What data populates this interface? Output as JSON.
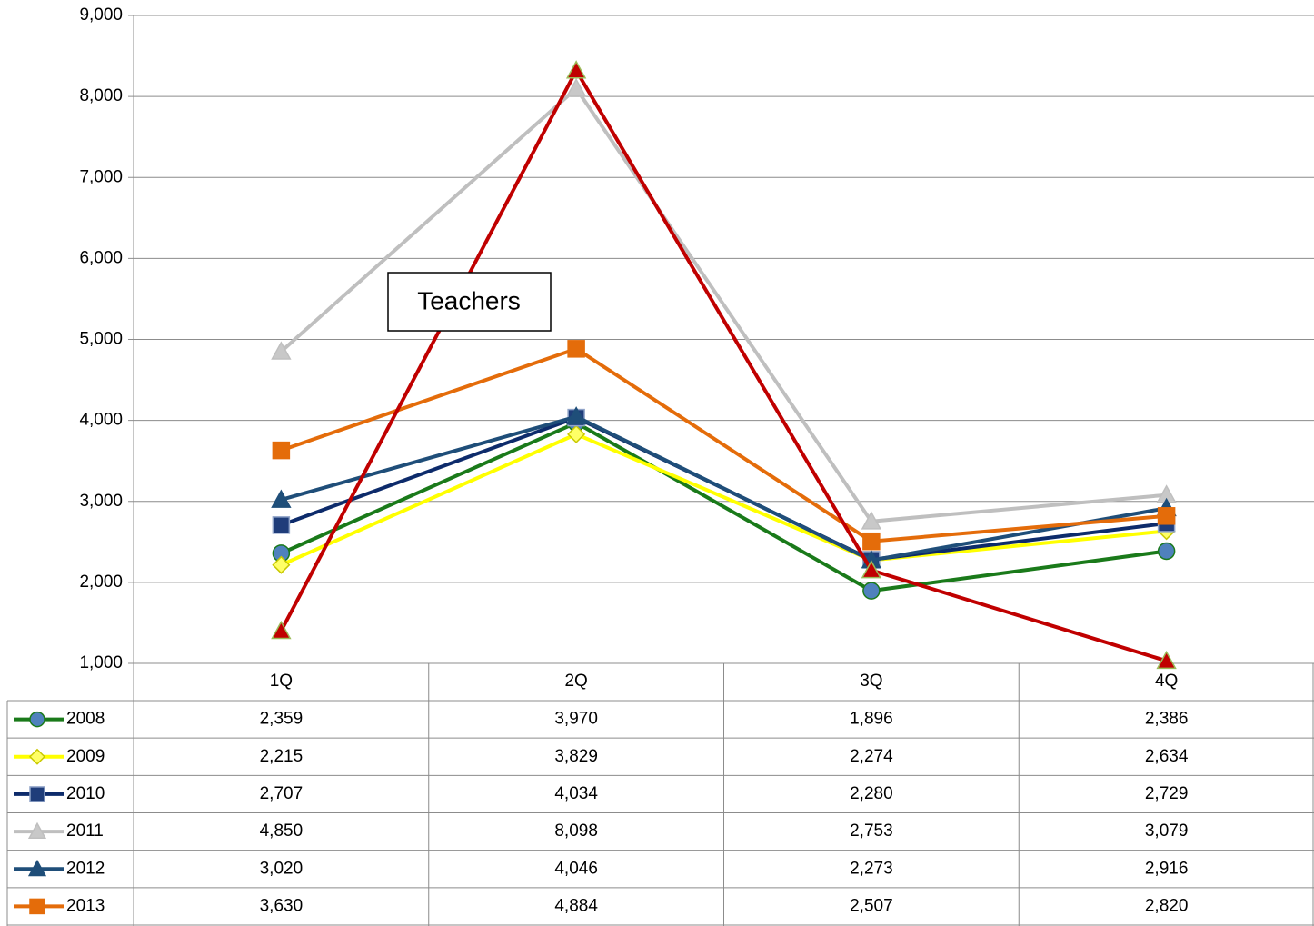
{
  "chart_data": {
    "type": "line",
    "categories": [
      "1Q",
      "2Q",
      "3Q",
      "4Q"
    ],
    "annotation": "Teachers",
    "ylim": [
      1000,
      9000
    ],
    "yticks": [
      {
        "value": 1000,
        "label": "1,000"
      },
      {
        "value": 2000,
        "label": "2,000"
      },
      {
        "value": 3000,
        "label": "3,000"
      },
      {
        "value": 4000,
        "label": "4,000"
      },
      {
        "value": 5000,
        "label": "5,000"
      },
      {
        "value": 6000,
        "label": "6,000"
      },
      {
        "value": 7000,
        "label": "7,000"
      },
      {
        "value": 8000,
        "label": "8,000"
      },
      {
        "value": 9000,
        "label": "9,000"
      }
    ],
    "grid": true,
    "series": [
      {
        "name": "2008",
        "color": "#1a7a1a",
        "marker": "circle",
        "marker_fill": "#4f81bd",
        "marker_edge": "#1a7a1a",
        "values": [
          2359,
          3970,
          1896,
          2386
        ],
        "value_labels": [
          "2,359",
          "3,970",
          "1,896",
          "2,386"
        ]
      },
      {
        "name": "2009",
        "color": "#ffff00",
        "marker": "diamond",
        "marker_fill": "#ffff66",
        "marker_edge": "#c8c800",
        "values": [
          2215,
          3829,
          2274,
          2634
        ],
        "value_labels": [
          "2,215",
          "3,829",
          "2,274",
          "2,634"
        ]
      },
      {
        "name": "2010",
        "color": "#0d2b6b",
        "marker": "square",
        "marker_fill": "#1f3d7a",
        "marker_edge": "#8fa3c8",
        "values": [
          2707,
          4034,
          2280,
          2729
        ],
        "value_labels": [
          "2,707",
          "4,034",
          "2,280",
          "2,729"
        ]
      },
      {
        "name": "2011",
        "color": "#bfbfbf",
        "marker": "triangle",
        "marker_fill": "#c8c8c8",
        "marker_edge": "#bfbfbf",
        "values": [
          4850,
          8098,
          2753,
          3079
        ],
        "value_labels": [
          "4,850",
          "8,098",
          "2,753",
          "3,079"
        ]
      },
      {
        "name": "2012",
        "color": "#1f4e79",
        "marker": "triangle",
        "marker_fill": "#1f4e79",
        "marker_edge": "#1f4e79",
        "values": [
          3020,
          4046,
          2273,
          2916
        ],
        "value_labels": [
          "3,020",
          "4,046",
          "2,273",
          "2,916"
        ]
      },
      {
        "name": "2013",
        "color": "#e46c0a",
        "marker": "square",
        "marker_fill": "#e46c0a",
        "marker_edge": "#e46c0a",
        "values": [
          3630,
          4884,
          2507,
          2820
        ],
        "value_labels": [
          "3,630",
          "4,884",
          "2,507",
          "2,820"
        ]
      },
      {
        "color": "#c00000",
        "marker": "triangle",
        "marker_fill": "#c00000",
        "marker_edge": "#9bbb59",
        "values": [
          1400,
          8320,
          2150,
          1030
        ]
      }
    ]
  }
}
